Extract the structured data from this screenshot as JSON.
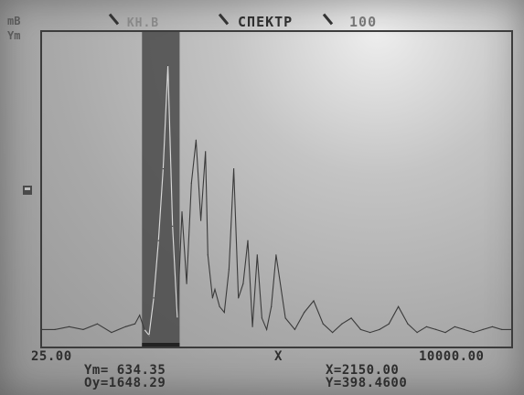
{
  "header": {
    "unit_top": "mB",
    "unit_bottom": "Ym",
    "channel_label": "КН.В",
    "mode_label": "СПЕКТР",
    "range_label": "100"
  },
  "axis": {
    "x_min": "25.00",
    "x_max": "10000.00",
    "x_symbol": "X"
  },
  "readout": {
    "ym": "Ym= 634.35",
    "oy": "Oy=1648.29",
    "x": "X=2150.00",
    "y": "Y=398.4600"
  },
  "colors": {
    "trace": "#3b3b3b",
    "cursor_band": "#4a4a4a",
    "frame": "#3c3c3c"
  },
  "icons": {
    "left_marker": "small-box-icon"
  },
  "chart_data": {
    "type": "line",
    "xlim": [
      25,
      10000
    ],
    "x_tick_labels": [
      "25.00",
      "10000.00"
    ],
    "xlabel": "X",
    "cursor": {
      "x_from": 2150,
      "x_to": 2950
    },
    "series": [
      {
        "x": [
          25,
          300,
          600,
          900,
          1200,
          1500,
          1800,
          2000,
          2100,
          2200,
          2300,
          2400,
          2500,
          2600,
          2700,
          2800,
          2900,
          3000,
          3100,
          3200,
          3300,
          3400,
          3500,
          3550,
          3650,
          3700,
          3800,
          3900,
          4000,
          4100,
          4200,
          4300,
          4400,
          4500,
          4600,
          4700,
          4800,
          4900,
          5000,
          5200,
          5400,
          5600,
          5800,
          6000,
          6200,
          6400,
          6600,
          6800,
          7000,
          7200,
          7400,
          7600,
          7800,
          8000,
          8200,
          8400,
          8600,
          8800,
          9000,
          9200,
          9400,
          9600,
          9800,
          10000
        ],
        "values": [
          4,
          4,
          5,
          4,
          6,
          3,
          5,
          6,
          9,
          4,
          2,
          15,
          35,
          60,
          96,
          40,
          8,
          45,
          20,
          55,
          70,
          42,
          66,
          30,
          15,
          18,
          12,
          10,
          25,
          60,
          15,
          20,
          35,
          5,
          30,
          8,
          4,
          12,
          30,
          8,
          4,
          10,
          14,
          6,
          3,
          6,
          8,
          4,
          3,
          4,
          6,
          12,
          6,
          3,
          5,
          4,
          3,
          5,
          4,
          3,
          4,
          5,
          4,
          4
        ]
      }
    ]
  }
}
